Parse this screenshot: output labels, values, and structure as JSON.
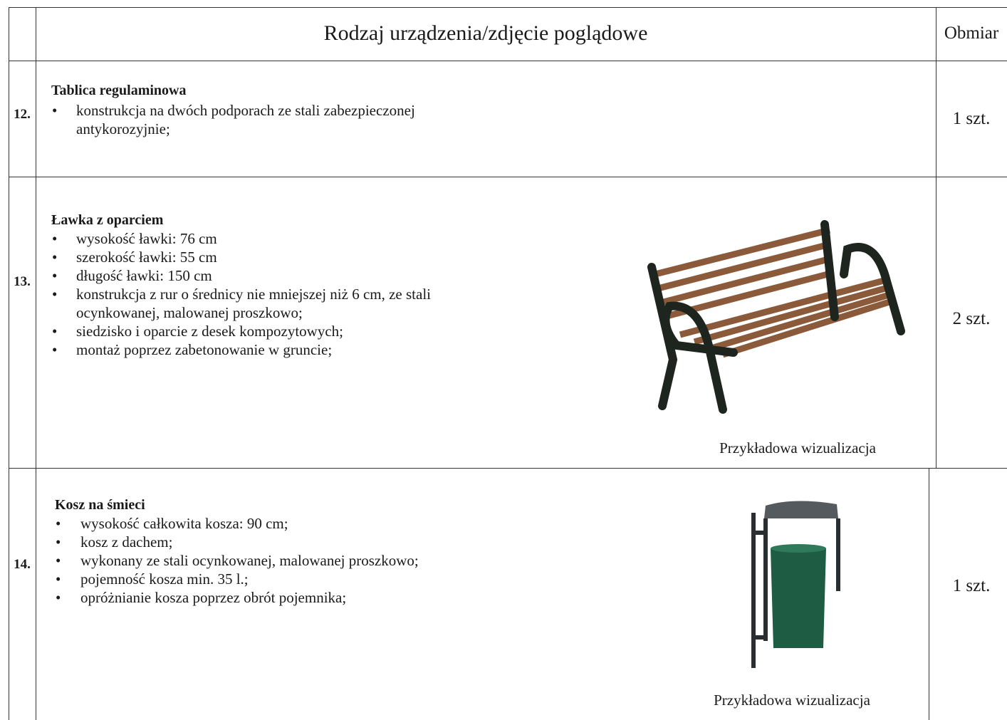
{
  "header": {
    "title": "Rodzaj urządzenia/zdjęcie poglądowe",
    "quantity": "Obmiar"
  },
  "rows": [
    {
      "number": "12.",
      "name": "Tablica regulaminowa",
      "items": [
        "konstrukcja na dwóch podporach ze stali zabezpieczonej antykorozyjnie;"
      ],
      "quantity": "1 szt."
    },
    {
      "number": "13.",
      "name": "Ławka z oparciem",
      "items": [
        "wysokość ławki: 76 cm",
        "szerokość ławki: 55 cm",
        "długość ławki: 150 cm",
        "konstrukcja z rur o średnicy nie mniejszej niż 6 cm, ze stali ocynkowanej, malowanej proszkowo;",
        "siedzisko i oparcie z desek kompozytowych;",
        "montaż poprzez zabetonowanie w gruncie;"
      ],
      "caption": "Przykładowa wizualizacja",
      "quantity": "2 szt."
    },
    {
      "number": "14.",
      "name": "Kosz na śmieci",
      "items": [
        "wysokość całkowita kosza: 90 cm;",
        "kosz z dachem;",
        "wykonany ze stali ocynkowanej, malowanej proszkowo;",
        "pojemność kosza min. 35 l.;",
        "opróżnianie kosza poprzez obrót pojemnika;"
      ],
      "caption": "Przykładowa wizualizacja",
      "quantity": "1 szt."
    }
  ]
}
